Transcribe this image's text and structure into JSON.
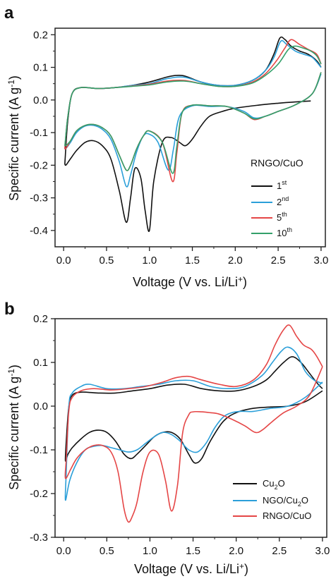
{
  "chart_data": [
    {
      "panel": "a",
      "type": "line",
      "xlabel": "Voltage (V vs. Li/Li+)",
      "ylabel": "Specific current (A g-1)",
      "xlim": [
        -0.1,
        3.05
      ],
      "ylim": [
        -0.45,
        0.22
      ],
      "xticks": [
        "0.0",
        "0.5",
        "1.0",
        "1.5",
        "2.0",
        "2.5",
        "3.0"
      ],
      "yticks": [
        "0.2",
        "0.1",
        "0.0",
        "-0.1",
        "-0.2",
        "-0.3",
        "-0.4"
      ],
      "legend": {
        "title": "RNGO/CuO",
        "position": "bottom-right"
      },
      "series": [
        {
          "name": "1st",
          "color": "#111111",
          "x": [
            2.88,
            2.7,
            2.5,
            2.3,
            2.0,
            1.85,
            1.7,
            1.6,
            1.5,
            1.42,
            1.35,
            1.25,
            1.15,
            1.05,
            1.0,
            0.95,
            0.9,
            0.83,
            0.78,
            0.73,
            0.65,
            0.55,
            0.45,
            0.35,
            0.25,
            0.15,
            0.08,
            0.02,
            0.02,
            0.05,
            0.1,
            0.2,
            0.4,
            0.6,
            0.8,
            1.0,
            1.2,
            1.3,
            1.38,
            1.45,
            1.6,
            1.8,
            2.0,
            2.2,
            2.35,
            2.45,
            2.52,
            2.58,
            2.65,
            2.75,
            2.85,
            2.95,
            3.0
          ],
          "y": [
            -0.003,
            -0.006,
            -0.01,
            -0.015,
            -0.025,
            -0.035,
            -0.05,
            -0.08,
            -0.12,
            -0.14,
            -0.13,
            -0.115,
            -0.13,
            -0.25,
            -0.4,
            -0.34,
            -0.24,
            -0.21,
            -0.3,
            -0.375,
            -0.28,
            -0.18,
            -0.14,
            -0.125,
            -0.13,
            -0.155,
            -0.18,
            -0.2,
            -0.17,
            -0.06,
            0.02,
            0.038,
            0.035,
            0.038,
            0.045,
            0.055,
            0.07,
            0.075,
            0.075,
            0.07,
            0.055,
            0.045,
            0.045,
            0.06,
            0.09,
            0.14,
            0.19,
            0.185,
            0.165,
            0.15,
            0.14,
            0.12,
            0.1
          ]
        },
        {
          "name": "2nd",
          "color": "#2b9fd9",
          "x": [
            3.0,
            2.9,
            2.7,
            2.5,
            2.35,
            2.22,
            2.1,
            1.9,
            1.7,
            1.5,
            1.35,
            1.28,
            1.22,
            1.1,
            1.0,
            0.93,
            0.85,
            0.78,
            0.73,
            0.65,
            0.55,
            0.45,
            0.35,
            0.25,
            0.15,
            0.08,
            0.02,
            0.02,
            0.05,
            0.1,
            0.2,
            0.4,
            0.6,
            0.8,
            1.0,
            1.2,
            1.4,
            1.6,
            1.8,
            2.0,
            2.2,
            2.35,
            2.45,
            2.53,
            2.6,
            2.7,
            2.8,
            2.9,
            3.0
          ],
          "y": [
            0.08,
            0.02,
            -0.015,
            -0.035,
            -0.05,
            -0.055,
            -0.035,
            -0.02,
            -0.02,
            -0.018,
            -0.05,
            -0.15,
            -0.215,
            -0.13,
            -0.105,
            -0.11,
            -0.16,
            -0.23,
            -0.265,
            -0.19,
            -0.12,
            -0.09,
            -0.078,
            -0.08,
            -0.1,
            -0.13,
            -0.15,
            -0.13,
            -0.05,
            0.02,
            0.038,
            0.035,
            0.038,
            0.045,
            0.05,
            0.065,
            0.07,
            0.055,
            0.045,
            0.045,
            0.06,
            0.09,
            0.13,
            0.18,
            0.17,
            0.15,
            0.14,
            0.13,
            0.1
          ]
        },
        {
          "name": "5th",
          "color": "#e54646",
          "x": [
            3.0,
            2.9,
            2.7,
            2.5,
            2.35,
            2.22,
            2.1,
            1.9,
            1.7,
            1.5,
            1.38,
            1.32,
            1.27,
            1.15,
            1.0,
            0.93,
            0.85,
            0.78,
            0.73,
            0.65,
            0.55,
            0.45,
            0.35,
            0.25,
            0.15,
            0.08,
            0.02,
            0.02,
            0.05,
            0.1,
            0.2,
            0.4,
            0.6,
            0.8,
            1.0,
            1.2,
            1.4,
            1.6,
            1.8,
            2.0,
            2.2,
            2.35,
            2.48,
            2.58,
            2.65,
            2.75,
            2.85,
            2.95,
            3.0
          ],
          "y": [
            0.085,
            0.02,
            -0.015,
            -0.035,
            -0.05,
            -0.06,
            -0.04,
            -0.02,
            -0.018,
            -0.016,
            -0.04,
            -0.16,
            -0.25,
            -0.13,
            -0.095,
            -0.11,
            -0.15,
            -0.2,
            -0.215,
            -0.17,
            -0.11,
            -0.085,
            -0.075,
            -0.078,
            -0.095,
            -0.125,
            -0.15,
            -0.13,
            -0.05,
            0.02,
            0.038,
            0.035,
            0.038,
            0.043,
            0.048,
            0.058,
            0.06,
            0.05,
            0.042,
            0.042,
            0.055,
            0.08,
            0.12,
            0.16,
            0.185,
            0.17,
            0.155,
            0.14,
            0.11
          ]
        },
        {
          "name": "10th",
          "color": "#33a06a",
          "x": [
            3.0,
            2.9,
            2.7,
            2.5,
            2.35,
            2.22,
            2.1,
            1.9,
            1.7,
            1.5,
            1.38,
            1.32,
            1.27,
            1.15,
            1.0,
            0.93,
            0.85,
            0.78,
            0.73,
            0.65,
            0.55,
            0.45,
            0.35,
            0.25,
            0.15,
            0.08,
            0.02,
            0.02,
            0.05,
            0.1,
            0.2,
            0.4,
            0.6,
            0.8,
            1.0,
            1.2,
            1.4,
            1.6,
            1.8,
            2.0,
            2.2,
            2.35,
            2.5,
            2.62,
            2.7,
            2.78,
            2.88,
            2.95,
            3.0
          ],
          "y": [
            0.085,
            0.02,
            -0.015,
            -0.035,
            -0.05,
            -0.058,
            -0.04,
            -0.02,
            -0.018,
            -0.016,
            -0.04,
            -0.14,
            -0.225,
            -0.13,
            -0.095,
            -0.11,
            -0.15,
            -0.2,
            -0.215,
            -0.17,
            -0.11,
            -0.085,
            -0.075,
            -0.078,
            -0.095,
            -0.125,
            -0.14,
            -0.125,
            -0.05,
            0.02,
            0.038,
            0.035,
            0.038,
            0.042,
            0.046,
            0.055,
            0.058,
            0.05,
            0.042,
            0.042,
            0.052,
            0.075,
            0.11,
            0.155,
            0.165,
            0.16,
            0.15,
            0.135,
            0.11
          ]
        }
      ]
    },
    {
      "panel": "b",
      "type": "line",
      "xlabel": "Voltage (V vs. Li/Li+)",
      "ylabel": "Specific current (A g-1)",
      "xlim": [
        -0.1,
        3.05
      ],
      "ylim": [
        -0.3,
        0.2
      ],
      "xticks": [
        "0.0",
        "0.5",
        "1.0",
        "1.5",
        "2.0",
        "2.5",
        "3.0"
      ],
      "yticks": [
        "0.2",
        "0.1",
        "0.0",
        "-0.1",
        "-0.2",
        "-0.3"
      ],
      "legend": {
        "position": "bottom-right"
      },
      "series": [
        {
          "name": "Cu2O",
          "color": "#111111",
          "x": [
            3.0,
            2.8,
            2.6,
            2.4,
            2.2,
            2.0,
            1.85,
            1.7,
            1.6,
            1.52,
            1.45,
            1.35,
            1.25,
            1.15,
            1.05,
            0.95,
            0.85,
            0.78,
            0.7,
            0.6,
            0.5,
            0.4,
            0.3,
            0.2,
            0.1,
            0.05,
            0.02,
            0.03,
            0.06,
            0.1,
            0.2,
            0.4,
            0.6,
            0.8,
            1.0,
            1.2,
            1.4,
            1.6,
            1.8,
            2.0,
            2.2,
            2.35,
            2.45,
            2.55,
            2.65,
            2.75,
            2.85,
            2.95,
            3.0
          ],
          "y": [
            0.035,
            0.01,
            0.0,
            -0.002,
            -0.005,
            -0.015,
            -0.035,
            -0.08,
            -0.12,
            -0.13,
            -0.11,
            -0.075,
            -0.06,
            -0.06,
            -0.07,
            -0.09,
            -0.11,
            -0.12,
            -0.11,
            -0.08,
            -0.06,
            -0.055,
            -0.06,
            -0.075,
            -0.095,
            -0.11,
            -0.125,
            -0.08,
            0.0,
            0.025,
            0.032,
            0.03,
            0.03,
            0.035,
            0.04,
            0.048,
            0.05,
            0.04,
            0.035,
            0.035,
            0.045,
            0.06,
            0.08,
            0.1,
            0.113,
            0.1,
            0.075,
            0.05,
            0.04
          ]
        },
        {
          "name": "NGO/Cu2O",
          "color": "#2b9fd9",
          "x": [
            3.0,
            2.8,
            2.6,
            2.4,
            2.2,
            2.05,
            1.95,
            1.85,
            1.75,
            1.65,
            1.55,
            1.45,
            1.35,
            1.25,
            1.15,
            1.05,
            0.95,
            0.85,
            0.75,
            0.65,
            0.55,
            0.45,
            0.35,
            0.25,
            0.15,
            0.07,
            0.02,
            0.03,
            0.06,
            0.1,
            0.2,
            0.3,
            0.5,
            0.7,
            0.9,
            1.1,
            1.3,
            1.5,
            1.7,
            1.9,
            2.1,
            2.3,
            2.42,
            2.52,
            2.6,
            2.7,
            2.8,
            2.9,
            3.0
          ],
          "y": [
            0.055,
            0.02,
            0.0,
            -0.005,
            -0.012,
            -0.012,
            -0.015,
            -0.025,
            -0.05,
            -0.085,
            -0.105,
            -0.1,
            -0.08,
            -0.065,
            -0.06,
            -0.07,
            -0.085,
            -0.1,
            -0.105,
            -0.1,
            -0.095,
            -0.09,
            -0.092,
            -0.1,
            -0.13,
            -0.17,
            -0.215,
            -0.15,
            0.0,
            0.03,
            0.045,
            0.05,
            0.04,
            0.04,
            0.045,
            0.05,
            0.058,
            0.058,
            0.045,
            0.04,
            0.045,
            0.07,
            0.1,
            0.125,
            0.135,
            0.12,
            0.08,
            0.06,
            0.052
          ]
        },
        {
          "name": "RNGO/CuO",
          "color": "#e54646",
          "x": [
            3.0,
            2.85,
            2.7,
            2.55,
            2.42,
            2.3,
            2.22,
            2.1,
            1.95,
            1.8,
            1.7,
            1.6,
            1.5,
            1.45,
            1.38,
            1.32,
            1.25,
            1.18,
            1.1,
            1.0,
            0.92,
            0.85,
            0.8,
            0.75,
            0.7,
            0.63,
            0.55,
            0.45,
            0.35,
            0.25,
            0.15,
            0.08,
            0.02,
            0.03,
            0.06,
            0.1,
            0.2,
            0.35,
            0.55,
            0.75,
            0.95,
            1.15,
            1.3,
            1.45,
            1.6,
            1.8,
            2.0,
            2.2,
            2.35,
            2.45,
            2.55,
            2.62,
            2.7,
            2.78,
            2.87,
            2.93,
            3.0
          ],
          "y": [
            0.09,
            0.025,
            0.0,
            -0.015,
            -0.035,
            -0.055,
            -0.06,
            -0.045,
            -0.03,
            -0.018,
            -0.015,
            -0.013,
            -0.013,
            -0.02,
            -0.06,
            -0.18,
            -0.24,
            -0.17,
            -0.11,
            -0.105,
            -0.15,
            -0.22,
            -0.25,
            -0.265,
            -0.235,
            -0.15,
            -0.105,
            -0.09,
            -0.09,
            -0.1,
            -0.12,
            -0.145,
            -0.165,
            -0.12,
            -0.01,
            0.02,
            0.035,
            0.04,
            0.037,
            0.04,
            0.045,
            0.055,
            0.065,
            0.068,
            0.06,
            0.05,
            0.045,
            0.06,
            0.095,
            0.14,
            0.175,
            0.185,
            0.16,
            0.14,
            0.13,
            0.115,
            0.09
          ]
        }
      ]
    }
  ]
}
